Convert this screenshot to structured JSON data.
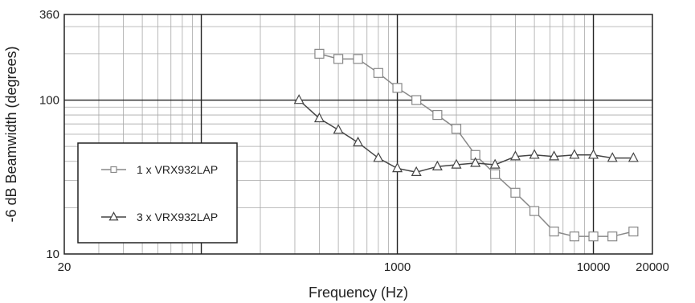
{
  "chart_data": {
    "type": "line",
    "title": "",
    "xlabel": "Frequency (Hz)",
    "ylabel": "-6 dB Beamwidth (degrees)",
    "x_scale": "log",
    "y_scale": "log",
    "xlim": [
      20,
      20000
    ],
    "ylim": [
      10,
      360
    ],
    "x_ticks": [
      {
        "value": 20,
        "label": "20"
      },
      {
        "value": 1000,
        "label": "1000"
      },
      {
        "value": 10000,
        "label": "10000"
      },
      {
        "value": 20000,
        "label": "20000"
      }
    ],
    "y_ticks": [
      {
        "value": 10,
        "label": "10"
      },
      {
        "value": 100,
        "label": "100"
      },
      {
        "value": 360,
        "label": "360"
      }
    ],
    "grid": true,
    "legend_position": "left",
    "series": [
      {
        "name": "1 x VRX932LAP",
        "marker": "square",
        "color": "#888888",
        "x": [
          400,
          500,
          630,
          800,
          1000,
          1250,
          1600,
          2000,
          2500,
          3150,
          4000,
          5000,
          6300,
          8000,
          10000,
          12500,
          16000
        ],
        "y": [
          200,
          185,
          185,
          150,
          120,
          100,
          80,
          65,
          44,
          33,
          25,
          19,
          14,
          13,
          13,
          13,
          14
        ]
      },
      {
        "name": "3 x VRX932LAP",
        "marker": "triangle",
        "color": "#444444",
        "x": [
          315,
          400,
          500,
          630,
          800,
          1000,
          1250,
          1600,
          2000,
          2500,
          3150,
          4000,
          5000,
          6300,
          8000,
          10000,
          12500,
          16000
        ],
        "y": [
          100,
          76,
          64,
          53,
          42,
          36,
          34,
          37,
          38,
          39,
          38,
          43,
          44,
          43,
          44,
          44,
          42,
          42
        ]
      }
    ]
  }
}
